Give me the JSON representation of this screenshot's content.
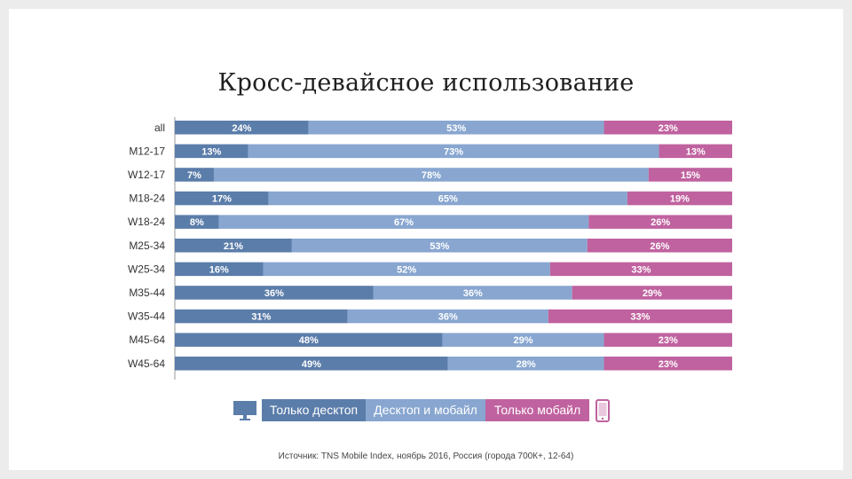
{
  "title": "Кросс-девайсное использование",
  "colors": {
    "desktop": "#5b7daa",
    "both": "#88a6d0",
    "mobile": "#c0629f"
  },
  "chart_data": {
    "type": "bar",
    "orientation": "horizontal",
    "stacked": "100%",
    "categories": [
      "all",
      "M12-17",
      "W12-17",
      "M18-24",
      "W18-24",
      "M25-34",
      "W25-34",
      "M35-44",
      "W35-44",
      "M45-64",
      "W45-64"
    ],
    "series": [
      {
        "name": "Только десктоп",
        "values": [
          24,
          13,
          7,
          17,
          8,
          21,
          16,
          36,
          31,
          48,
          49
        ]
      },
      {
        "name": "Десктоп и мобайл",
        "values": [
          53,
          73,
          78,
          65,
          67,
          53,
          52,
          36,
          36,
          29,
          28
        ]
      },
      {
        "name": "Только мобайл",
        "values": [
          23,
          13,
          15,
          19,
          26,
          26,
          33,
          29,
          33,
          23,
          23
        ]
      }
    ],
    "labels": [
      [
        "24%",
        "53%",
        "23%"
      ],
      [
        "13%",
        "73%",
        "13%"
      ],
      [
        "7%",
        "78%",
        "15%"
      ],
      [
        "17%",
        "65%",
        "19%"
      ],
      [
        "8%",
        "67%",
        "26%"
      ],
      [
        "21%",
        "53%",
        "26%"
      ],
      [
        "16%",
        "52%",
        "33%"
      ],
      [
        "36%",
        "36%",
        "29%"
      ],
      [
        "31%",
        "36%",
        "33%"
      ],
      [
        "48%",
        "29%",
        "23%"
      ],
      [
        "49%",
        "28%",
        "23%"
      ]
    ],
    "xlim": [
      0,
      100
    ],
    "legend_position": "bottom"
  },
  "legend": {
    "desktop": "Только десктоп",
    "both": "Десктоп и мобайл",
    "mobile": "Только мобайл",
    "desktop_icon": "desktop-monitor-icon",
    "mobile_icon": "smartphone-icon"
  },
  "source": "Источник: TNS Mobile Index, ноябрь 2016, Россия (города 700К+, 12-64)"
}
